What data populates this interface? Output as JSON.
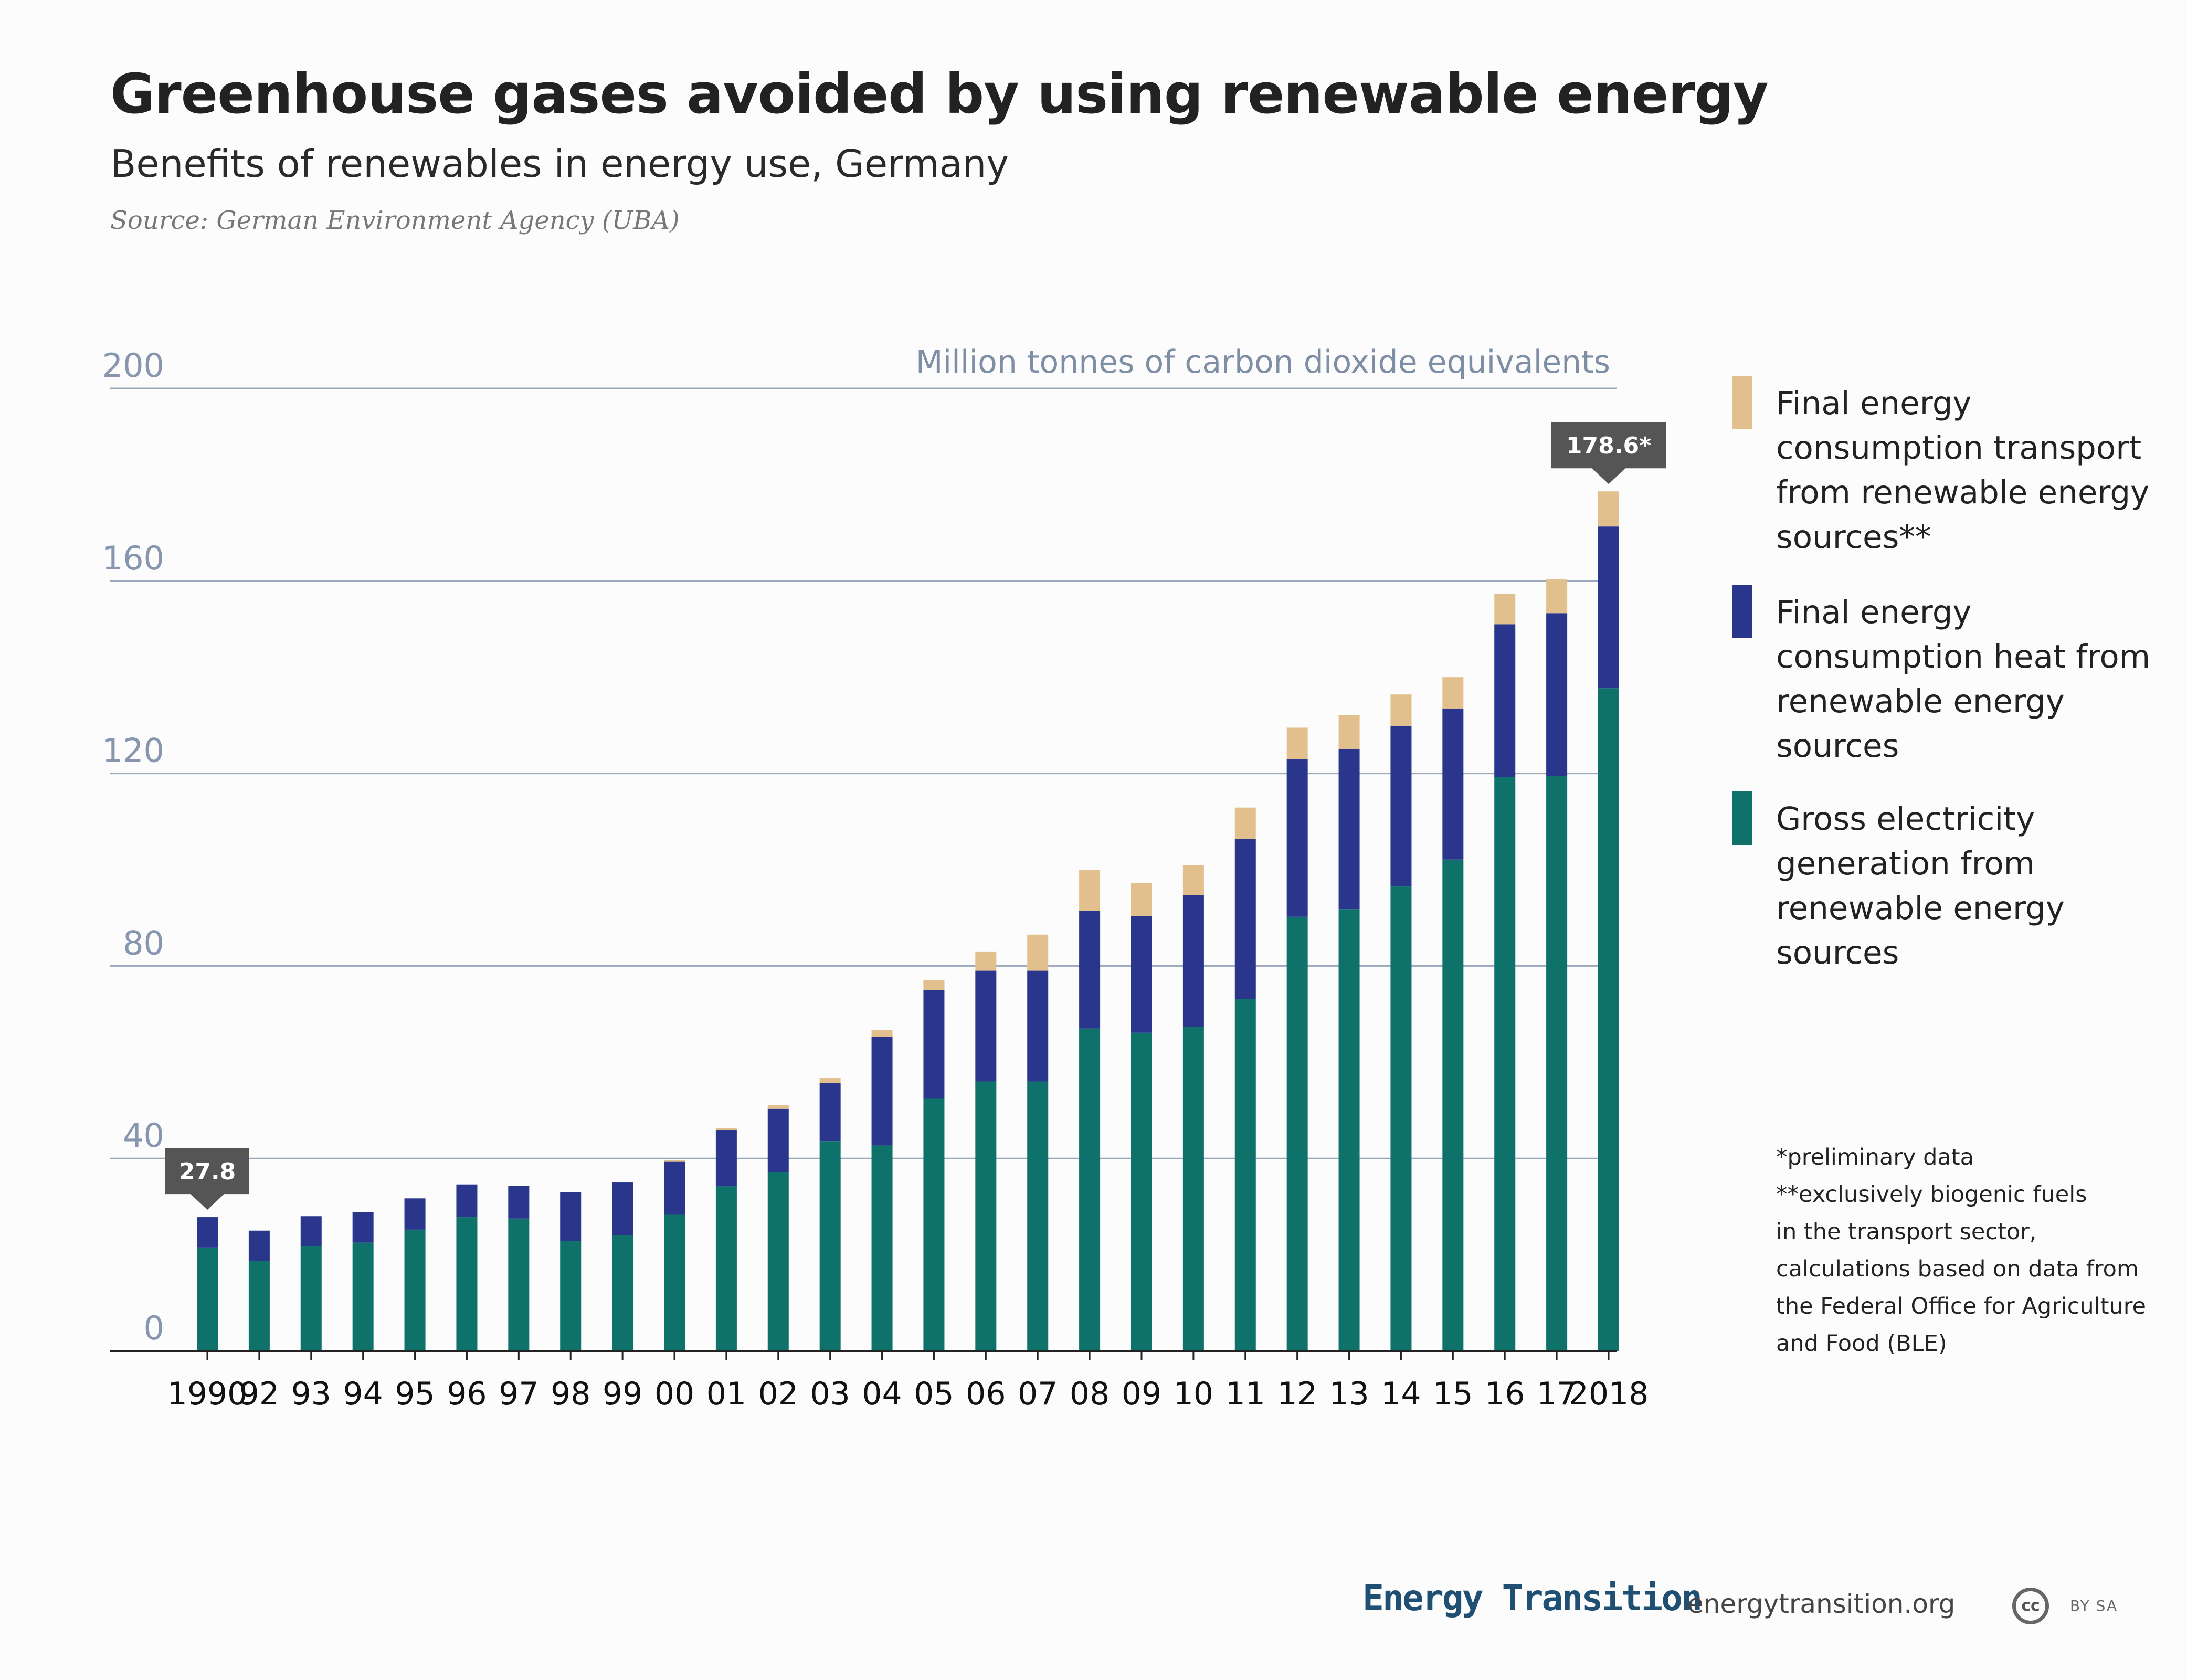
{
  "header": {
    "title": "Greenhouse gases avoided by using renewable energy",
    "subtitle": "Benefits of renewables in energy use, Germany",
    "source": "Source: German Environment Agency (UBA)"
  },
  "chart_data": {
    "type": "bar",
    "stacked": true,
    "title": "Greenhouse gases avoided by using renewable energy",
    "subtitle": "Benefits of renewables in energy use, Germany",
    "unit_label": "Million tonnes of carbon dioxide equivalents",
    "ylim": [
      0,
      200
    ],
    "yticks": [
      0,
      40,
      80,
      120,
      160,
      200
    ],
    "grid": true,
    "legend_position": "right",
    "categories": [
      "1990",
      "92",
      "93",
      "94",
      "95",
      "96",
      "97",
      "98",
      "99",
      "00",
      "01",
      "02",
      "03",
      "04",
      "05",
      "06",
      "07",
      "08",
      "09",
      "10",
      "11",
      "12",
      "13",
      "14",
      "15",
      "16",
      "17",
      "2018"
    ],
    "series": [
      {
        "name": "Gross electricity generation from renewable energy sources",
        "color": "#0e716a",
        "values": [
          21.5,
          18.7,
          21.8,
          22.5,
          25.2,
          27.8,
          27.5,
          22.8,
          24.0,
          28.3,
          34.2,
          37.1,
          43.6,
          42.7,
          52.4,
          56.0,
          56.0,
          67.0,
          66.1,
          67.3,
          73.1,
          90.2,
          91.8,
          96.5,
          102.1,
          119.2,
          119.5,
          137.7
        ]
      },
      {
        "name": "Final energy consumption heat from renewable energy sources",
        "color": "#29368c",
        "values": [
          6.3,
          6.3,
          6.2,
          6.3,
          6.5,
          6.8,
          6.8,
          10.2,
          11.0,
          11.0,
          11.6,
          13.2,
          12.1,
          22.6,
          22.6,
          23.0,
          23.0,
          24.5,
          24.3,
          27.4,
          33.3,
          32.7,
          33.3,
          33.4,
          31.4,
          31.8,
          33.8,
          33.6
        ]
      },
      {
        "name": "Final energy consumption transport from renewable energy sources**",
        "color": "#e1c08e",
        "values": [
          0,
          0,
          0,
          0,
          0,
          0,
          0,
          0,
          0,
          0.4,
          0.5,
          0.8,
          1.0,
          1.4,
          2.0,
          4.0,
          7.5,
          8.5,
          6.8,
          6.2,
          6.5,
          6.6,
          7.0,
          6.5,
          6.5,
          6.3,
          7.0,
          7.3
        ]
      }
    ],
    "callouts": [
      {
        "category": "1990",
        "label": "27.8"
      },
      {
        "category": "2018",
        "label": "178.6*"
      }
    ]
  },
  "legend": [
    {
      "label": "Final energy consumption transport from renewable energy sources**",
      "color": "#e1c08e"
    },
    {
      "label": "Final energy consumption heat from renewable energy sources",
      "color": "#29368c"
    },
    {
      "label": "Gross electricity generation from renewable energy sources",
      "color": "#0e716a"
    }
  ],
  "notes": [
    "*preliminary data",
    "**exclusively biogenic fuels",
    "in the transport sector,",
    "calculations based on data from",
    "the Federal Office for Agriculture",
    "and Food (BLE)"
  ],
  "footer": {
    "brand": "Energy Transition",
    "url": "energytransition.org",
    "cc": "cc",
    "license": "BY SA"
  }
}
